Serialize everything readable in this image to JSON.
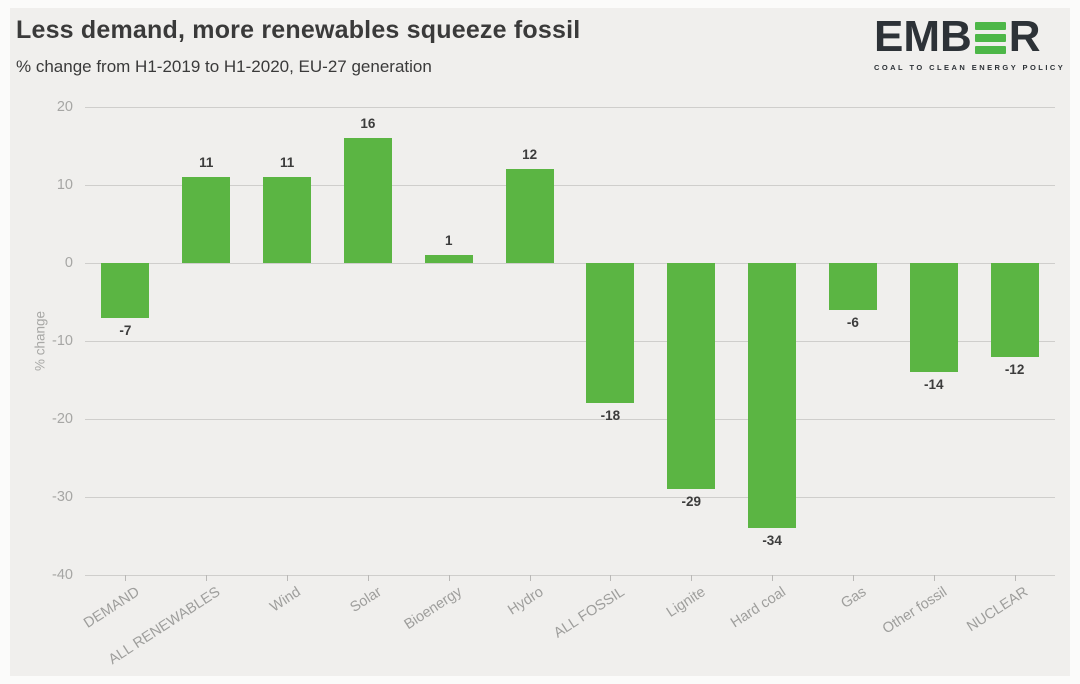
{
  "header": {
    "title": "Less demand, more renewables squeeze fossil",
    "subtitle": "% change from H1-2019 to H1-2020, EU-27 generation"
  },
  "logo": {
    "word_left": "EMB",
    "word_right": "R",
    "tagline": "COAL TO CLEAN ENERGY POLICY",
    "dark_color": "#2d3237",
    "green_color": "#4db748"
  },
  "chart_data": {
    "type": "bar",
    "title": "Less demand, more renewables squeeze fossil",
    "subtitle": "% change from H1-2019 to H1-2020, EU-27 generation",
    "categories": [
      "DEMAND",
      "ALL RENEWABLES",
      "Wind",
      "Solar",
      "Bioenergy",
      "Hydro",
      "ALL FOSSIL",
      "Lignite",
      "Hard coal",
      "Gas",
      "Other fossil",
      "NUCLEAR"
    ],
    "values": [
      -7,
      11,
      11,
      16,
      1,
      12,
      -18,
      -29,
      -34,
      -6,
      -14,
      -12
    ],
    "xlabel": "",
    "ylabel": "% change",
    "ylim": [
      -40,
      20
    ],
    "yticks": [
      20,
      10,
      0,
      -10,
      -20,
      -30,
      -40
    ],
    "grid": true,
    "legend": "none",
    "bar_color": "#5bb543",
    "background_color": "#f0efed",
    "gridline_color": "#cfcecc"
  }
}
